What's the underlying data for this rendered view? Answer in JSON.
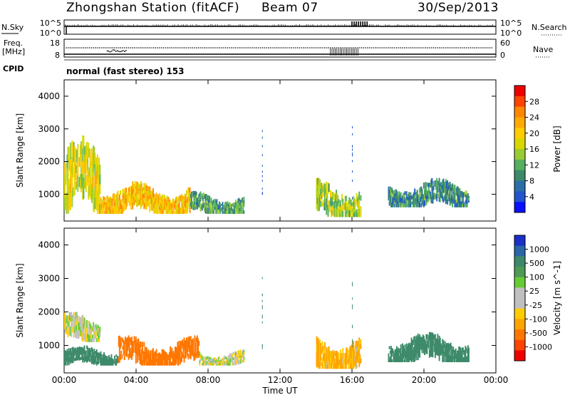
{
  "header": {
    "title": "Zhongshan Station (fitACF)",
    "beam": "Beam 07",
    "date": "30/Sep/2013"
  },
  "side_labels": {
    "nsky": "N.Sky",
    "nsky_hi": "10^5",
    "nsky_lo": "10^0",
    "nsearch": "N.Search",
    "nsearch_hi": "10^5",
    "nsearch_lo": "10^0",
    "freq": "Freq.",
    "freq_unit": "[MHz]",
    "freq_hi": "18",
    "freq_lo": "8",
    "nave": "Nave",
    "nave_hi": "60",
    "nave_lo": "0",
    "cpid": "CPID",
    "mode": "normal (fast stereo) 153"
  },
  "axes": {
    "y_label": "Slant Range [km]",
    "y_ticks": [
      "4000",
      "3000",
      "2000",
      "1000"
    ],
    "x_label": "Time UT",
    "x_ticks": [
      "00:00",
      "04:00",
      "08:00",
      "12:00",
      "16:00",
      "20:00",
      "00:00"
    ]
  },
  "power_colorbar": {
    "label": "Power [dB]",
    "ticks": [
      "28",
      "24",
      "20",
      "16",
      "12",
      "8",
      "4"
    ],
    "colors": [
      "#ee0000",
      "#ff4400",
      "#ff8800",
      "#ffaa00",
      "#ffcc00",
      "#d8d800",
      "#99cc33",
      "#55b060",
      "#3d8a6a",
      "#2a6fa8",
      "#2255cc",
      "#0a10ff"
    ]
  },
  "velocity_colorbar": {
    "label": "Velocity [m s^-1]",
    "ticks": [
      "1000",
      "500",
      "100",
      "25",
      "-25",
      "-100",
      "-500",
      "-1000"
    ],
    "colors": [
      "#1c2fc8",
      "#2a66a8",
      "#3d8a6a",
      "#4f9a55",
      "#66cc33",
      "#c0c0c0",
      "#c0c0c0",
      "#ffcc00",
      "#ffa500",
      "#ff7700",
      "#ff4400",
      "#ee0000"
    ]
  },
  "chart_data": [
    {
      "type": "heatmap",
      "title": "Zhongshan Station (fitACF) Beam 07 30/Sep/2013",
      "xlabel": "Time UT",
      "ylabel": "Slant Range [km]",
      "x_range": [
        "00:00",
        "24:00"
      ],
      "ylim": [
        180,
        4500
      ],
      "colorbar": "Power [dB]",
      "colorbar_range": [
        0,
        30
      ],
      "grid": false,
      "echo_regions": [
        {
          "t_start": 0.0,
          "t_end": 2.0,
          "range_min": 400,
          "range_max": 2800,
          "power_db": 16
        },
        {
          "t_start": 2.0,
          "t_end": 7.0,
          "range_min": 400,
          "range_max": 1400,
          "power_db": 20
        },
        {
          "t_start": 7.0,
          "t_end": 10.0,
          "range_min": 400,
          "range_max": 1100,
          "power_db": 10
        },
        {
          "t_start": 14.0,
          "t_end": 16.5,
          "range_min": 300,
          "range_max": 1500,
          "power_db": 14
        },
        {
          "t_start": 18.0,
          "t_end": 22.5,
          "range_min": 600,
          "range_max": 1500,
          "power_db": 8
        }
      ]
    },
    {
      "type": "heatmap",
      "xlabel": "Time UT",
      "ylabel": "Slant Range [km]",
      "x_range": [
        "00:00",
        "24:00"
      ],
      "ylim": [
        180,
        4500
      ],
      "colorbar": "Velocity [m s^-1]",
      "colorbar_ticks": [
        1000,
        500,
        100,
        25,
        -25,
        -100,
        -500,
        -1000
      ],
      "grid": false,
      "echo_regions": [
        {
          "t_start": 0.0,
          "t_end": 3.0,
          "range_min": 400,
          "range_max": 1000,
          "velocity": 150
        },
        {
          "t_start": 0.0,
          "t_end": 2.0,
          "range_min": 1100,
          "range_max": 2000,
          "velocity": 0
        },
        {
          "t_start": 3.0,
          "t_end": 7.5,
          "range_min": 400,
          "range_max": 1300,
          "velocity": -300
        },
        {
          "t_start": 7.5,
          "t_end": 10.0,
          "range_min": 400,
          "range_max": 900,
          "velocity": 0
        },
        {
          "t_start": 14.0,
          "t_end": 16.5,
          "range_min": 300,
          "range_max": 1400,
          "velocity": -80
        },
        {
          "t_start": 18.0,
          "t_end": 22.5,
          "range_min": 500,
          "range_max": 1400,
          "velocity": 200
        }
      ]
    }
  ]
}
